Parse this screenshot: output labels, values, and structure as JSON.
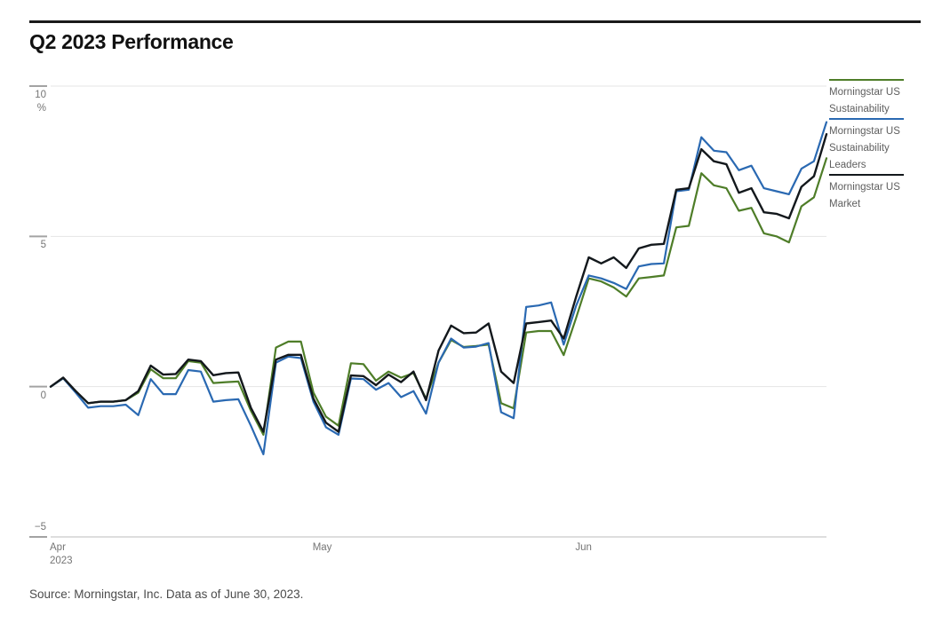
{
  "title": "Q2 2023 Performance",
  "source_note": "Source: Morningstar, Inc. Data as of June 30, 2023.",
  "colors": {
    "background": "#ffffff",
    "title_rule": "#1a1a1a",
    "title_text": "#111111",
    "grid": "#e4e4e4",
    "axis_line": "#c9c9c9",
    "tick_dash": "#a3a3a3",
    "axis_text": "#757575",
    "legend_text": "#5e5e5e",
    "source_text": "#4b4b4b",
    "series_green": "#4e7d28",
    "series_blue": "#2a69b2",
    "series_black": "#13181c"
  },
  "chart_data": {
    "type": "line",
    "title": "Q2 2023 Performance",
    "unit": "%",
    "ylim": [
      -5,
      10
    ],
    "y_ticks": [
      10,
      5,
      0,
      -5
    ],
    "x_ticks": [
      {
        "label": "Apr",
        "sublabel": "2023",
        "day": 0
      },
      {
        "label": "May",
        "day": 21
      },
      {
        "label": "Jun",
        "day": 42
      }
    ],
    "grid": "horizontal-only",
    "legend_position": "right",
    "x_description": "Daily cumulative return, Apr 3 - Jun 30 2023, percent",
    "series": [
      {
        "name": "Morningstar US Sustainability",
        "color": "#4e7d28",
        "values": [
          0,
          0.28,
          -0.15,
          -0.55,
          -0.5,
          -0.5,
          -0.45,
          -0.2,
          0.58,
          0.28,
          0.28,
          0.85,
          0.8,
          0.12,
          0.15,
          0.17,
          -0.8,
          -1.6,
          1.3,
          1.5,
          1.5,
          -0.2,
          -1.0,
          -1.3,
          0.78,
          0.75,
          0.2,
          0.5,
          0.3,
          0.45,
          -0.4,
          0.8,
          1.55,
          1.32,
          1.35,
          1.4,
          -0.55,
          -0.72,
          1.8,
          1.85,
          1.85,
          1.05,
          2.3,
          3.6,
          3.5,
          3.3,
          3.0,
          3.6,
          3.65,
          3.7,
          5.3,
          5.35,
          7.1,
          6.7,
          6.6,
          5.85,
          5.95,
          5.1,
          5.0,
          4.8,
          6.0,
          6.3,
          7.6
        ]
      },
      {
        "name": "Morningstar US Sustainability Leaders",
        "color": "#2a69b2",
        "values": [
          0,
          0.28,
          -0.2,
          -0.7,
          -0.65,
          -0.65,
          -0.6,
          -0.95,
          0.25,
          -0.25,
          -0.25,
          0.55,
          0.5,
          -0.5,
          -0.45,
          -0.42,
          -1.3,
          -2.25,
          0.8,
          1.0,
          0.95,
          -0.5,
          -1.35,
          -1.6,
          0.27,
          0.25,
          -0.1,
          0.12,
          -0.35,
          -0.15,
          -0.9,
          0.8,
          1.6,
          1.3,
          1.33,
          1.45,
          -0.85,
          -1.05,
          2.65,
          2.7,
          2.8,
          1.4,
          2.7,
          3.7,
          3.6,
          3.45,
          3.25,
          4.0,
          4.08,
          4.1,
          6.5,
          6.55,
          8.3,
          7.85,
          7.8,
          7.2,
          7.35,
          6.6,
          6.5,
          6.4,
          7.25,
          7.5,
          8.8
        ]
      },
      {
        "name": "Morningstar US Market",
        "color": "#13181c",
        "values": [
          0,
          0.3,
          -0.15,
          -0.55,
          -0.5,
          -0.5,
          -0.45,
          -0.15,
          0.7,
          0.4,
          0.42,
          0.9,
          0.85,
          0.38,
          0.45,
          0.47,
          -0.7,
          -1.5,
          0.9,
          1.06,
          1.06,
          -0.4,
          -1.2,
          -1.5,
          0.37,
          0.35,
          0.05,
          0.4,
          0.15,
          0.5,
          -0.45,
          1.2,
          2.03,
          1.78,
          1.8,
          2.1,
          0.5,
          0.12,
          2.1,
          2.15,
          2.2,
          1.6,
          3.0,
          4.3,
          4.1,
          4.3,
          3.95,
          4.6,
          4.72,
          4.75,
          6.55,
          6.6,
          7.9,
          7.5,
          7.4,
          6.45,
          6.6,
          5.8,
          5.75,
          5.6,
          6.65,
          7.0,
          8.4
        ]
      }
    ]
  }
}
